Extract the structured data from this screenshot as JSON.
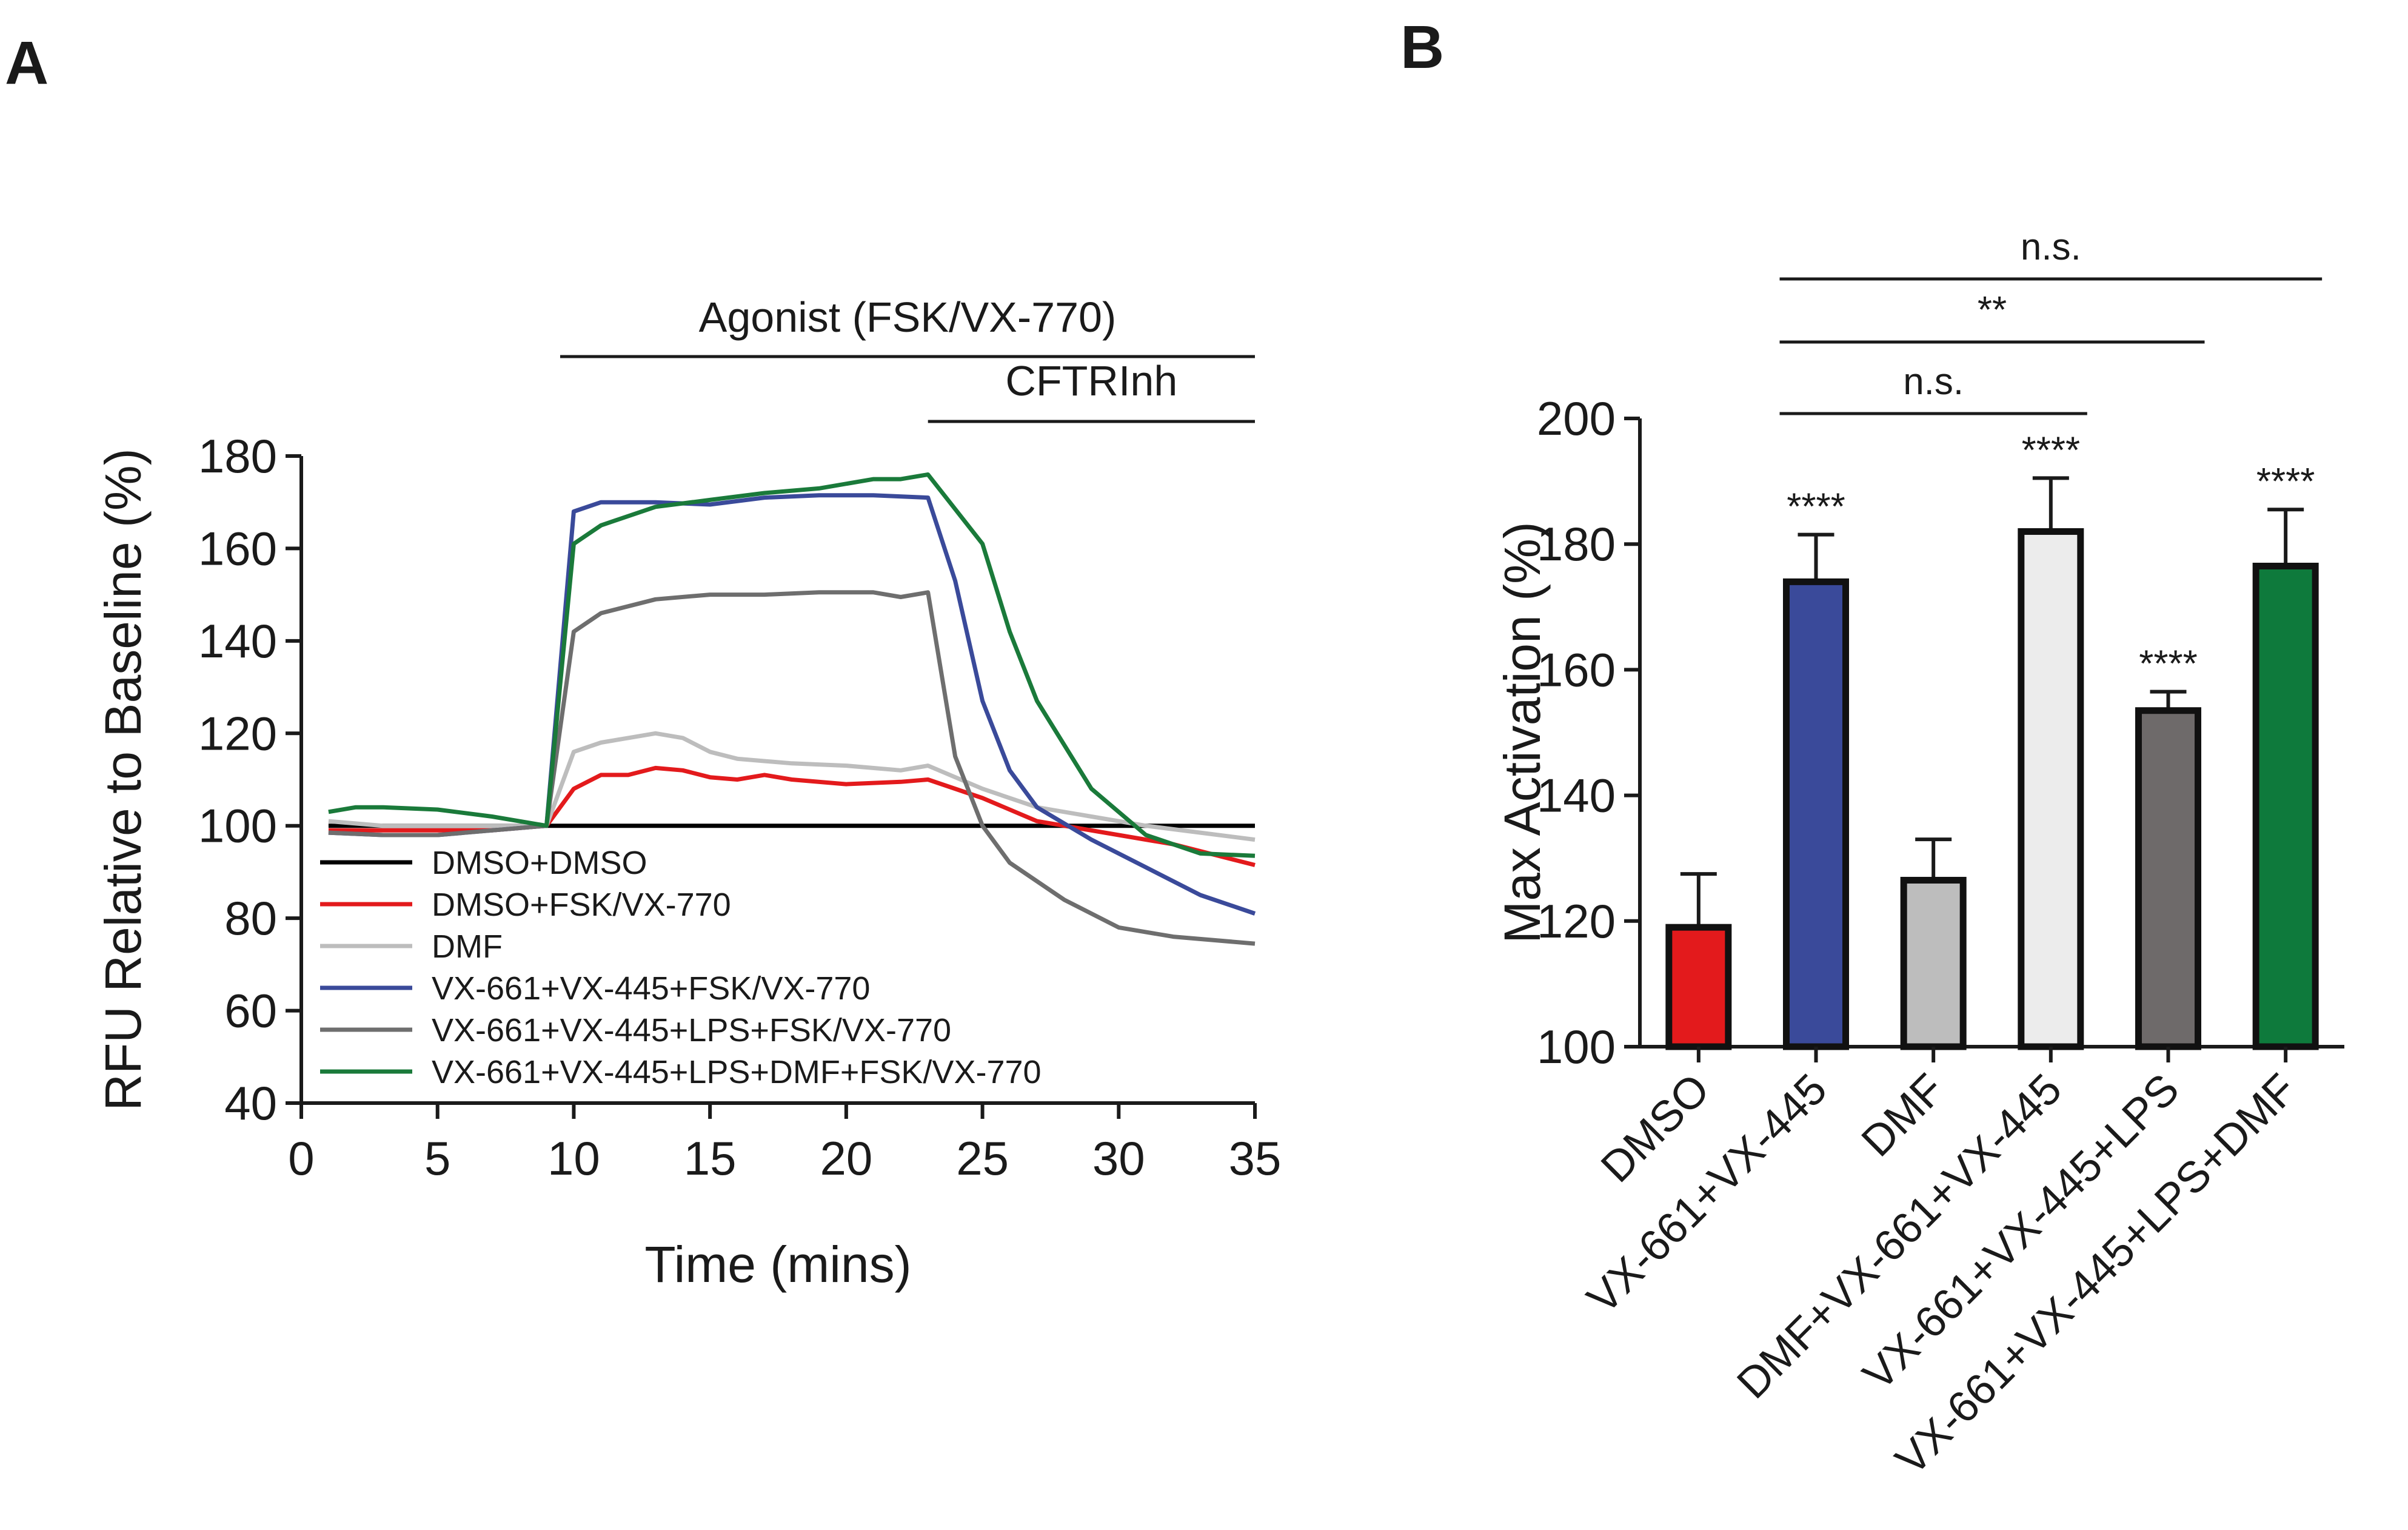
{
  "chart_data": [
    {
      "panel": "A",
      "type": "line",
      "title": "",
      "xlabel": "Time (mins)",
      "ylabel": "RFU Relative to Baseline (%)",
      "xlim": [
        0,
        35
      ],
      "ylim": [
        40,
        180
      ],
      "xticks": [
        0,
        5,
        10,
        15,
        20,
        25,
        30,
        35
      ],
      "yticks": [
        40,
        60,
        80,
        100,
        120,
        140,
        160,
        180
      ],
      "annotations": [
        {
          "label": "Agonist (FSK/VX-770)",
          "x_start": 9.5,
          "x_end": 35
        },
        {
          "label": "CFTRInh",
          "x_start": 23,
          "x_end": 35
        }
      ],
      "legend_position": "bottom-left",
      "series": [
        {
          "name": "DMSO+DMSO",
          "color": "#000000",
          "x": [
            1,
            35
          ],
          "y": [
            100,
            100
          ]
        },
        {
          "name": "DMSO+FSK/VX-770",
          "color": "#e31a1c",
          "x": [
            1,
            3,
            5,
            7,
            9,
            10,
            11,
            12,
            13,
            14,
            15,
            16,
            17,
            18,
            20,
            22,
            23,
            25,
            27,
            30,
            32,
            35
          ],
          "y": [
            99,
            99,
            99,
            99,
            100,
            108,
            111,
            111,
            112.5,
            112,
            110.5,
            110,
            111,
            110,
            109,
            109.5,
            110,
            106,
            101,
            98,
            96,
            91.5
          ]
        },
        {
          "name": "DMF",
          "color": "#bdbdbd",
          "x": [
            1,
            3,
            5,
            7,
            9,
            10,
            11,
            12,
            13,
            14,
            15,
            16,
            18,
            20,
            22,
            23,
            25,
            27,
            29,
            31,
            33,
            35
          ],
          "y": [
            101,
            100,
            100,
            100,
            100,
            116,
            118,
            119,
            120,
            119,
            116,
            114.5,
            113.5,
            113,
            112,
            113,
            108,
            104,
            102,
            100,
            98.5,
            97
          ]
        },
        {
          "name": "VX-661+VX-445+FSK/VX-770",
          "color": "#3a4a9a",
          "x": [
            1,
            3,
            5,
            7,
            9,
            10,
            11,
            13,
            15,
            17,
            19,
            21,
            23,
            24,
            25,
            26,
            27,
            29,
            31,
            33,
            35
          ],
          "y": [
            98.5,
            98,
            98,
            99,
            100,
            168,
            170,
            170,
            169.5,
            171,
            171.5,
            171.5,
            171,
            153,
            127,
            112,
            104,
            97,
            91,
            85,
            81
          ]
        },
        {
          "name": "VX-661+VX-445+LPS+FSK/VX-770",
          "color": "#6e6e6e",
          "x": [
            1,
            3,
            5,
            7,
            9,
            10,
            11,
            13,
            15,
            17,
            19,
            21,
            22,
            23,
            24,
            25,
            26,
            28,
            30,
            32,
            35
          ],
          "y": [
            98.5,
            98,
            98,
            99,
            100,
            142,
            146,
            149,
            150,
            150,
            150.5,
            150.5,
            149.5,
            150.5,
            115,
            100,
            92,
            84,
            78,
            76,
            74.5
          ]
        },
        {
          "name": "VX-661+VX-445+LPS+DMF+FSK/VX-770",
          "color": "#1a7a3a",
          "x": [
            1,
            2,
            3,
            5,
            7,
            9,
            10,
            11,
            13,
            15,
            17,
            19,
            21,
            22,
            23,
            25,
            26,
            27,
            29,
            31,
            33,
            35
          ],
          "y": [
            103,
            104,
            104,
            103.5,
            102,
            100,
            161,
            165,
            169,
            170.5,
            172,
            173,
            175,
            175,
            176,
            161,
            142,
            127,
            108,
            98,
            94,
            93.5
          ]
        }
      ]
    },
    {
      "panel": "B",
      "type": "bar",
      "title": "",
      "xlabel": "",
      "ylabel": "Max Activation (%)",
      "ylim": [
        100,
        200
      ],
      "yticks": [
        100,
        120,
        140,
        160,
        180,
        200
      ],
      "categories": [
        "DMSO",
        "VX-661+VX-445",
        "DMF",
        "DMF+VX-661+VX-445",
        "VX-661+VX-445+LPS",
        "VX-661+VX-445+LPS+DMF"
      ],
      "values": [
        119,
        174,
        126.5,
        182,
        153.5,
        176.5
      ],
      "errors": [
        8.5,
        7.5,
        6.5,
        8.5,
        3,
        9
      ],
      "colors": [
        "#e31a1c",
        "#3a4a9a",
        "#bdbdbd",
        "#ececec",
        "#6e6a6a",
        "#0e7a3c"
      ],
      "significance_labels": [
        "",
        "****",
        "",
        "****",
        "****",
        "****"
      ],
      "comparisons": [
        {
          "from": 1,
          "to": 3,
          "label": "n.s."
        },
        {
          "from": 1,
          "to": 4,
          "label": "**"
        },
        {
          "from": 1,
          "to": 5,
          "label": "n.s."
        }
      ]
    }
  ],
  "panels": {
    "a_label": "A",
    "b_label": "B"
  }
}
